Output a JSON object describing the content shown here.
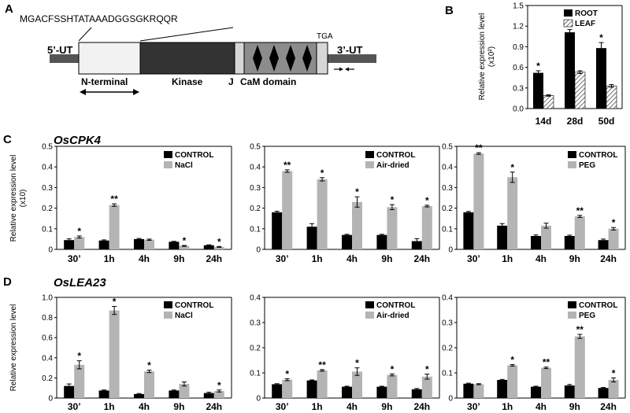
{
  "panels": {
    "A": "A",
    "B": "B",
    "C": "C",
    "D": "D"
  },
  "diagram": {
    "peptide": "MGACFSSHTATAAADGGSGKRQQR",
    "utr5": "5’-UT",
    "utr3": "3’-UT",
    "tga": "TGA",
    "nterminal": "N-terminal",
    "kinase": "Kinase",
    "j": "J",
    "cam": "CaM domain",
    "colors": {
      "kinase": "#333333",
      "cam": "#8c8c8c",
      "utr": "#555555",
      "nterm": "#f2f2f2"
    }
  },
  "genes": {
    "c": "OsCPK4",
    "d": "OsLEA23"
  },
  "colors": {
    "black": "#000000",
    "gray": "#b4b4b4",
    "hatch": "#8a8a8a"
  },
  "chart_data": [
    {
      "id": "B",
      "type": "bar",
      "categories": [
        "14d",
        "28d",
        "50d"
      ],
      "series": [
        {
          "name": "ROOT",
          "values": [
            0.52,
            1.11,
            0.88
          ],
          "errors": [
            0.03,
            0.04,
            0.08
          ]
        },
        {
          "name": "LEAF",
          "values": [
            0.19,
            0.53,
            0.33
          ],
          "errors": [
            0.01,
            0.02,
            0.02
          ]
        }
      ],
      "stars": [
        [
          "*",
          "*",
          "*"
        ],
        [
          "",
          "",
          ""
        ]
      ],
      "ylabel": "Relative expression level",
      "ylabel2": "(x10²)",
      "ylim": [
        0,
        1.5
      ],
      "yticks": [
        "0.0",
        "0.3",
        "0.6",
        "0.9",
        "1.2",
        "1.5"
      ],
      "legend": "top-right"
    },
    {
      "id": "C1",
      "type": "bar",
      "categories": [
        "30’",
        "1h",
        "4h",
        "9h",
        "24h"
      ],
      "series": [
        {
          "name": "CONTROL",
          "values": [
            0.045,
            0.043,
            0.05,
            0.037,
            0.02
          ],
          "errors": [
            0.006,
            0.003,
            0.003,
            0.002,
            0.002
          ]
        },
        {
          "name": "NaCl",
          "values": [
            0.06,
            0.215,
            0.047,
            0.017,
            0.012
          ],
          "errors": [
            0.005,
            0.006,
            0.003,
            0.002,
            0.002
          ]
        }
      ],
      "stars": [
        [
          "",
          "",
          "",
          "",
          ""
        ],
        [
          "*",
          "**",
          "",
          "*",
          "*"
        ]
      ],
      "ylabel": "Relative expression level",
      "ylabel2": "(x10)",
      "ylim": [
        0,
        0.5
      ],
      "yticks": [
        "0",
        "0.1",
        "0.2",
        "0.3",
        "0.4",
        "0.5"
      ],
      "legend": "top-right"
    },
    {
      "id": "C2",
      "type": "bar",
      "categories": [
        "30’",
        "1h",
        "4h",
        "9h",
        "24h"
      ],
      "series": [
        {
          "name": "CONTROL",
          "values": [
            0.18,
            0.11,
            0.07,
            0.07,
            0.04
          ],
          "errors": [
            0.005,
            0.015,
            0.003,
            0.003,
            0.012
          ]
        },
        {
          "name": "Air-dried",
          "values": [
            0.38,
            0.34,
            0.23,
            0.205,
            0.21
          ],
          "errors": [
            0.006,
            0.008,
            0.025,
            0.012,
            0.004
          ]
        }
      ],
      "stars": [
        [
          "",
          "",
          "",
          "",
          ""
        ],
        [
          "**",
          "*",
          "*",
          "*",
          "*"
        ]
      ],
      "ylim": [
        0,
        0.5
      ],
      "yticks": [
        "0",
        "0.1",
        "0.2",
        "0.3",
        "0.4",
        "0.5"
      ],
      "legend": "top-right"
    },
    {
      "id": "C3",
      "type": "bar",
      "categories": [
        "30’",
        "1h",
        "4h",
        "9h",
        "24h"
      ],
      "series": [
        {
          "name": "CONTROL",
          "values": [
            0.18,
            0.115,
            0.065,
            0.065,
            0.045
          ],
          "errors": [
            0.004,
            0.01,
            0.005,
            0.004,
            0.005
          ]
        },
        {
          "name": "PEG",
          "values": [
            0.465,
            0.35,
            0.115,
            0.16,
            0.1
          ],
          "errors": [
            0.004,
            0.025,
            0.012,
            0.005,
            0.006
          ]
        }
      ],
      "stars": [
        [
          "",
          "",
          "",
          "",
          ""
        ],
        [
          "**",
          "*",
          "",
          "**",
          "*"
        ]
      ],
      "ylim": [
        0,
        0.5
      ],
      "yticks": [
        "0",
        "0.1",
        "0.2",
        "0.3",
        "0.4",
        "0.5"
      ],
      "legend": "top-right"
    },
    {
      "id": "D1",
      "type": "bar",
      "categories": [
        "30’",
        "1h",
        "4h",
        "9h",
        "24h"
      ],
      "series": [
        {
          "name": "CONTROL",
          "values": [
            0.12,
            0.075,
            0.04,
            0.075,
            0.05
          ],
          "errors": [
            0.02,
            0.005,
            0.005,
            0.005,
            0.008
          ]
        },
        {
          "name": "NaCl",
          "values": [
            0.33,
            0.87,
            0.265,
            0.14,
            0.07
          ],
          "errors": [
            0.04,
            0.04,
            0.012,
            0.02,
            0.01
          ]
        }
      ],
      "stars": [
        [
          "",
          "",
          "",
          "",
          ""
        ],
        [
          "*",
          "*",
          "*",
          "",
          "*"
        ]
      ],
      "ylabel": "Relative expression level",
      "ylim": [
        0,
        1.0
      ],
      "yticks": [
        "0",
        "0.2",
        "0.4",
        "0.6",
        "0.8",
        "1.0"
      ],
      "legend": "top-right"
    },
    {
      "id": "D2",
      "type": "bar",
      "categories": [
        "30’",
        "1h",
        "4h",
        "9h",
        "24h"
      ],
      "series": [
        {
          "name": "CONTROL",
          "values": [
            0.055,
            0.07,
            0.045,
            0.045,
            0.035
          ],
          "errors": [
            0.002,
            0.002,
            0.002,
            0.002,
            0.003
          ]
        },
        {
          "name": "Air-dried",
          "values": [
            0.073,
            0.11,
            0.105,
            0.092,
            0.085
          ],
          "errors": [
            0.004,
            0.003,
            0.015,
            0.004,
            0.01
          ]
        }
      ],
      "stars": [
        [
          "",
          "",
          "",
          "",
          ""
        ],
        [
          "*",
          "**",
          "*",
          "*",
          "*"
        ]
      ],
      "ylim": [
        0,
        0.4
      ],
      "yticks": [
        "0",
        "0.1",
        "0.2",
        "0.3",
        "0.4"
      ],
      "legend": "top-right"
    },
    {
      "id": "D3",
      "type": "bar",
      "categories": [
        "30’",
        "1h",
        "4h",
        "9h",
        "24h"
      ],
      "series": [
        {
          "name": "CONTROL",
          "values": [
            0.057,
            0.072,
            0.045,
            0.05,
            0.04
          ],
          "errors": [
            0.002,
            0.002,
            0.002,
            0.004,
            0.002
          ]
        },
        {
          "name": "PEG",
          "values": [
            0.055,
            0.13,
            0.12,
            0.245,
            0.072
          ],
          "errors": [
            0.002,
            0.003,
            0.003,
            0.008,
            0.008
          ]
        }
      ],
      "stars": [
        [
          "",
          "",
          "",
          "",
          ""
        ],
        [
          "",
          "*",
          "**",
          "**",
          "*"
        ]
      ],
      "ylim": [
        0,
        0.4
      ],
      "yticks": [
        "0",
        "0.1",
        "0.2",
        "0.3",
        "0.4"
      ],
      "legend": "top-right"
    }
  ]
}
